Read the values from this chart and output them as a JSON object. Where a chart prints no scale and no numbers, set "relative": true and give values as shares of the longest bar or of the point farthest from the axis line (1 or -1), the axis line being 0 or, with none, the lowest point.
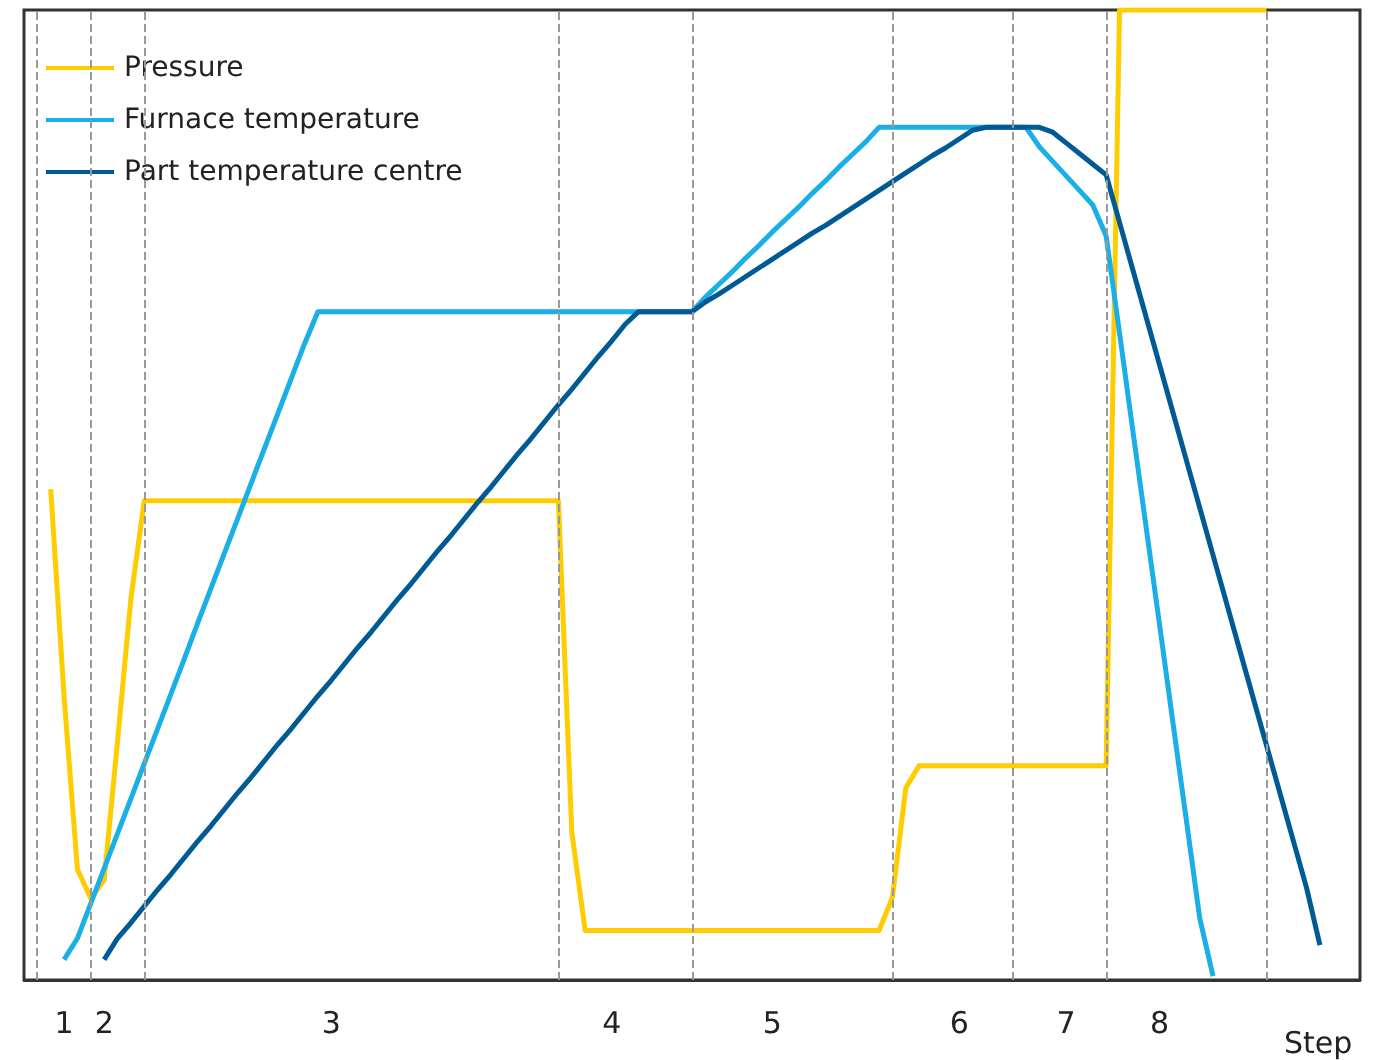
{
  "chart_data": {
    "type": "line",
    "relative": true,
    "xlabel": "Step",
    "legend": "top left",
    "categories": [
      null,
      null,
      null,
      "1",
      null,
      null,
      "2",
      null,
      null,
      null,
      null,
      null,
      null,
      null,
      null,
      null,
      null,
      null,
      null,
      null,
      null,
      null,
      null,
      "3",
      null,
      null,
      null,
      null,
      null,
      null,
      null,
      null,
      null,
      null,
      null,
      null,
      null,
      null,
      null,
      null,
      null,
      null,
      null,
      null,
      "4",
      null,
      null,
      null,
      null,
      null,
      null,
      null,
      null,
      null,
      null,
      null,
      "5",
      null,
      null,
      null,
      null,
      null,
      null,
      null,
      null,
      null,
      null,
      null,
      null,
      null,
      "6",
      null,
      null,
      null,
      null,
      null,
      null,
      null,
      "7",
      null,
      null,
      null,
      null,
      null,
      null,
      "8",
      null,
      null,
      null,
      null,
      null,
      null,
      null,
      null,
      null,
      null,
      null,
      null,
      null,
      null,
      null
    ],
    "series": [
      {
        "name": "Pressure",
        "color": "#ffcc00",
        "values": [
          null,
          null,
          0.506,
          0.292,
          0.114,
          0.084,
          0.103,
          0.246,
          0.393,
          0.494,
          0.494,
          0.494,
          0.494,
          0.494,
          0.494,
          0.494,
          0.494,
          0.494,
          0.494,
          0.494,
          0.494,
          0.494,
          0.494,
          0.494,
          0.494,
          0.494,
          0.494,
          0.494,
          0.494,
          0.494,
          0.494,
          0.494,
          0.494,
          0.494,
          0.494,
          0.494,
          0.494,
          0.494,
          0.494,
          0.494,
          0.494,
          0.153,
          0.051,
          0.051,
          0.051,
          0.051,
          0.051,
          0.051,
          0.051,
          0.051,
          0.051,
          0.051,
          0.051,
          0.051,
          0.051,
          0.051,
          0.051,
          0.051,
          0.051,
          0.051,
          0.051,
          0.051,
          0.051,
          0.051,
          0.051,
          0.085,
          0.198,
          0.221,
          0.221,
          0.221,
          0.221,
          0.221,
          0.221,
          0.221,
          0.221,
          0.221,
          0.221,
          0.221,
          0.221,
          0.221,
          0.221,
          0.221,
          1,
          1,
          1,
          1,
          1,
          1,
          1,
          1,
          1,
          1,
          1,
          1,
          null,
          null,
          null,
          null,
          null,
          null,
          null
        ]
      },
      {
        "name": "Furnace temperature",
        "color": "#1aafe6",
        "values": [
          null,
          null,
          null,
          0.021,
          0.043,
          0.079,
          0.115,
          0.151,
          0.187,
          0.223,
          0.259,
          0.295,
          0.331,
          0.368,
          0.404,
          0.44,
          0.476,
          0.512,
          0.548,
          0.584,
          0.62,
          0.656,
          0.689,
          0.689,
          0.689,
          0.689,
          0.689,
          0.689,
          0.689,
          0.689,
          0.689,
          0.689,
          0.689,
          0.689,
          0.689,
          0.689,
          0.689,
          0.689,
          0.689,
          0.689,
          0.689,
          0.689,
          0.689,
          0.689,
          0.689,
          0.689,
          0.689,
          0.689,
          0.689,
          0.689,
          0.689,
          0.704,
          0.717,
          0.73,
          0.744,
          0.757,
          0.771,
          0.784,
          0.797,
          0.811,
          0.824,
          0.838,
          0.851,
          0.864,
          0.879,
          0.879,
          0.879,
          0.879,
          0.879,
          0.879,
          0.879,
          0.879,
          0.879,
          0.879,
          0.879,
          0.879,
          0.859,
          0.844,
          0.829,
          0.814,
          0.799,
          0.767,
          0.667,
          0.566,
          0.466,
          0.366,
          0.265,
          0.165,
          0.064,
          0.004,
          null,
          null,
          null,
          null,
          null,
          null,
          null,
          null,
          null,
          null,
          null
        ]
      },
      {
        "name": "Part temperature centre",
        "color": "#005a94",
        "values": [
          null,
          null,
          null,
          null,
          null,
          null,
          0.021,
          0.043,
          0.059,
          0.076,
          0.093,
          0.109,
          0.126,
          0.143,
          0.159,
          0.176,
          0.193,
          0.209,
          0.226,
          0.243,
          0.259,
          0.276,
          0.293,
          0.309,
          0.326,
          0.343,
          0.359,
          0.376,
          0.393,
          0.409,
          0.426,
          0.443,
          0.459,
          0.476,
          0.493,
          0.509,
          0.526,
          0.543,
          0.559,
          0.576,
          0.593,
          0.609,
          0.626,
          0.643,
          0.659,
          0.676,
          0.689,
          0.689,
          0.689,
          0.689,
          0.689,
          0.699,
          0.707,
          0.716,
          0.725,
          0.734,
          0.743,
          0.752,
          0.761,
          0.77,
          0.778,
          0.787,
          0.796,
          0.805,
          0.814,
          0.823,
          0.832,
          0.841,
          0.85,
          0.858,
          0.867,
          0.876,
          0.879,
          0.879,
          0.879,
          0.879,
          0.879,
          0.874,
          0.863,
          0.852,
          0.841,
          0.83,
          0.781,
          0.732,
          0.683,
          0.634,
          0.585,
          0.536,
          0.487,
          0.438,
          0.389,
          0.34,
          0.291,
          0.242,
          0.193,
          0.144,
          0.095,
          0.036,
          null,
          null,
          null
        ]
      }
    ]
  }
}
